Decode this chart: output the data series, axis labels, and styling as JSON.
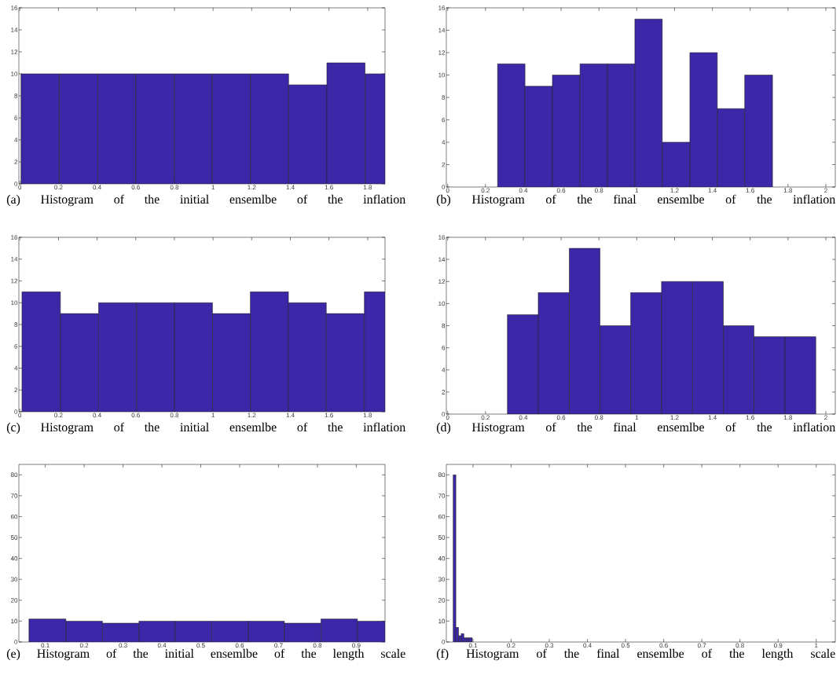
{
  "chart_data": [
    {
      "type": "histogram",
      "title": "(a) Histogram of the initial ensemlbe of the inflation",
      "color": "#3b27a8",
      "bins": [
        0.006,
        0.204,
        0.403,
        0.6,
        0.799,
        0.996,
        1.193,
        1.391,
        1.589,
        1.787,
        1.89
      ],
      "values": [
        10,
        10,
        10,
        10,
        10,
        10,
        10,
        9,
        11,
        10
      ],
      "xlim": [
        -0.005,
        1.89
      ],
      "xticks": [
        0,
        0.2,
        0.4,
        0.6,
        0.8,
        1,
        1.2,
        1.4,
        1.6,
        1.8
      ],
      "ylim": [
        0,
        16
      ],
      "yticks": [
        0,
        2,
        4,
        6,
        8,
        10,
        12,
        14,
        16
      ]
    },
    {
      "type": "histogram",
      "title": "(b) Histogram of the final ensemlbe of the inflation",
      "color": "#3b27a8",
      "bins": [
        0.264,
        0.409,
        0.554,
        0.7,
        0.845,
        0.99,
        1.135,
        1.281,
        1.426,
        1.571,
        1.718
      ],
      "values": [
        11,
        9,
        10,
        11,
        11,
        15,
        4,
        12,
        7,
        10
      ],
      "xlim": [
        -0.007,
        2.05
      ],
      "xticks": [
        0,
        0.2,
        0.4,
        0.6,
        0.8,
        1,
        1.2,
        1.4,
        1.6,
        1.8,
        2
      ],
      "ylim": [
        0,
        16
      ],
      "yticks": [
        0,
        2,
        4,
        6,
        8,
        10,
        12,
        14,
        16
      ]
    },
    {
      "type": "histogram",
      "title": "(c) Histogram of the initial ensemlbe of the inflation",
      "color": "#3b27a8",
      "bins": [
        0.011,
        0.21,
        0.407,
        0.604,
        0.8,
        0.997,
        1.193,
        1.39,
        1.586,
        1.783,
        1.89
      ],
      "values": [
        11,
        9,
        10,
        10,
        10,
        9,
        11,
        10,
        9,
        11
      ],
      "xlim": [
        -0.005,
        1.89
      ],
      "xticks": [
        0,
        0.2,
        0.4,
        0.6,
        0.8,
        1,
        1.2,
        1.4,
        1.6,
        1.8
      ],
      "ylim": [
        0,
        16
      ],
      "yticks": [
        0,
        2,
        4,
        6,
        8,
        10,
        12,
        14,
        16
      ]
    },
    {
      "type": "histogram",
      "title": "(d) Histogram of the final ensemlbe of the inflation",
      "color": "#3b27a8",
      "bins": [
        0.316,
        0.479,
        0.643,
        0.806,
        0.968,
        1.131,
        1.295,
        1.458,
        1.62,
        1.784,
        1.947
      ],
      "values": [
        9,
        11,
        15,
        8,
        11,
        12,
        12,
        8,
        7,
        7
      ],
      "xlim": [
        -0.007,
        2.05
      ],
      "xticks": [
        0,
        0.2,
        0.4,
        0.6,
        0.8,
        1,
        1.2,
        1.4,
        1.6,
        1.8,
        2
      ],
      "ylim": [
        0,
        16
      ],
      "yticks": [
        0,
        2,
        4,
        6,
        8,
        10,
        12,
        14,
        16
      ]
    },
    {
      "type": "histogram",
      "title": "(e) Histogram of the initial ensemlbe of the length scale",
      "color": "#3b27a8",
      "bins": [
        0.058,
        0.153,
        0.247,
        0.341,
        0.434,
        0.528,
        0.622,
        0.715,
        0.809,
        0.903,
        0.974
      ],
      "values": [
        11,
        10,
        9,
        10,
        10,
        10,
        10,
        9,
        11,
        10
      ],
      "xlim": [
        0.032,
        0.974
      ],
      "xticks": [
        0.1,
        0.2,
        0.3,
        0.4,
        0.5,
        0.6,
        0.7,
        0.8,
        0.9
      ],
      "ylim": [
        0,
        85
      ],
      "yticks": [
        0,
        10,
        20,
        30,
        40,
        50,
        60,
        70,
        80
      ]
    },
    {
      "type": "histogram",
      "title": "(f) Histogram of the final ensemlbe of the length scale",
      "color": "#3b27a8",
      "bins": [
        0.048,
        0.055,
        0.062,
        0.069,
        0.076,
        0.083,
        0.09,
        0.098
      ],
      "values": [
        80,
        7,
        3,
        4,
        2,
        2,
        2
      ],
      "xlim": [
        0.03,
        1.05
      ],
      "xticks": [
        0.1,
        0.2,
        0.3,
        0.4,
        0.5,
        0.6,
        0.7,
        0.8,
        0.9,
        1
      ],
      "ylim": [
        0,
        85
      ],
      "yticks": [
        0,
        10,
        20,
        30,
        40,
        50,
        60,
        70,
        80
      ]
    }
  ]
}
